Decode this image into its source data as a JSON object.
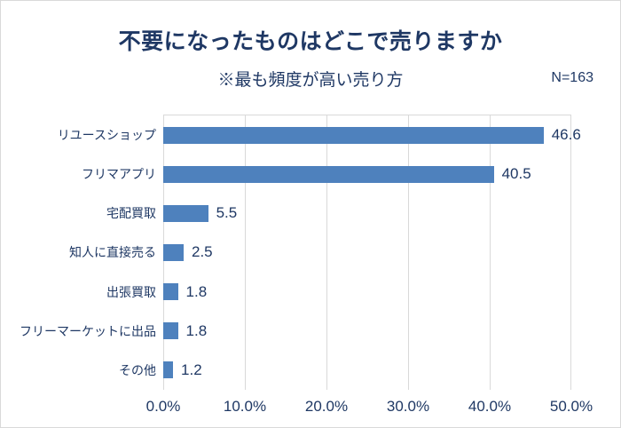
{
  "chart_data": {
    "type": "bar",
    "orientation": "horizontal",
    "title": "不要になったものはどこで売りますか",
    "subtitle": "※最も頻度が高い売り方",
    "sample_label": "N=163",
    "categories": [
      "リユースショップ",
      "フリマアプリ",
      "宅配買取",
      "知人に直接売る",
      "出張買取",
      "フリーマーケットに出品",
      "その他"
    ],
    "values": [
      46.6,
      40.5,
      5.5,
      2.5,
      1.8,
      1.8,
      1.2
    ],
    "value_labels": [
      "46.6",
      "40.5",
      "5.5",
      "2.5",
      "1.8",
      "1.8",
      "1.2"
    ],
    "x_ticks": [
      "0.0%",
      "10.0%",
      "20.0%",
      "30.0%",
      "40.0%",
      "50.0%"
    ],
    "xlim": [
      0,
      50
    ],
    "grid": "vertical major gridlines every 10%",
    "legend": "none",
    "colors": {
      "bar": "#4e81bd",
      "text": "#1f3864",
      "grid": "#d9d9d9",
      "frame_border": "#d9d9d9",
      "background": "#ffffff"
    }
  }
}
